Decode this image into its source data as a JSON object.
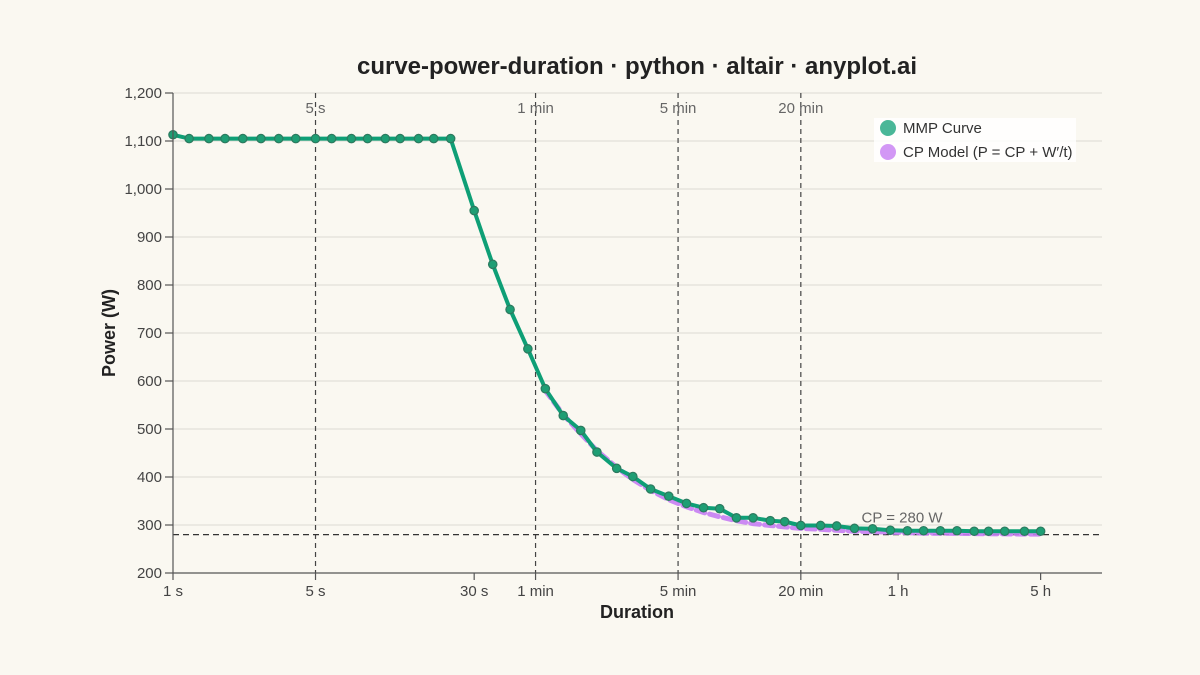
{
  "chart_data": {
    "type": "line",
    "title": "curve-power-duration · python · altair · anyplot.ai",
    "xlabel": "Duration",
    "ylabel": "Power (W)",
    "x_scale": "log",
    "x_unit": "seconds",
    "xlim": [
      1,
      36000
    ],
    "ylim": [
      200,
      1200
    ],
    "yticks": [
      {
        "value": 200,
        "label": "200"
      },
      {
        "value": 300,
        "label": "300"
      },
      {
        "value": 400,
        "label": "400"
      },
      {
        "value": 500,
        "label": "500"
      },
      {
        "value": 600,
        "label": "600"
      },
      {
        "value": 700,
        "label": "700"
      },
      {
        "value": 800,
        "label": "800"
      },
      {
        "value": 900,
        "label": "900"
      },
      {
        "value": 1000,
        "label": "1,000"
      },
      {
        "value": 1100,
        "label": "1,100"
      },
      {
        "value": 1200,
        "label": "1,200"
      }
    ],
    "xticks": [
      {
        "value": 1,
        "label": "1 s"
      },
      {
        "value": 5,
        "label": "5 s"
      },
      {
        "value": 30,
        "label": "30 s"
      },
      {
        "value": 60,
        "label": "1 min"
      },
      {
        "value": 300,
        "label": "5 min"
      },
      {
        "value": 1200,
        "label": "20 min"
      },
      {
        "value": 3600,
        "label": "1 h"
      },
      {
        "value": 18000,
        "label": "5 h"
      }
    ],
    "reference_lines": {
      "vertical": [
        {
          "value": 5,
          "label": "5 s"
        },
        {
          "value": 60,
          "label": "1 min"
        },
        {
          "value": 300,
          "label": "5 min"
        },
        {
          "value": 1200,
          "label": "20 min"
        }
      ],
      "horizontal": [
        {
          "value": 280,
          "label": "CP = 280 W"
        }
      ]
    },
    "grid": "horizontal",
    "legend_position": "top-right",
    "series": [
      {
        "name": "MMP Curve",
        "color": "#0E9F76",
        "marker": "circle",
        "x": [
          1,
          1.2,
          1.5,
          1.8,
          2.2,
          2.7,
          3.3,
          4,
          5,
          6,
          7.5,
          9,
          11,
          13,
          16,
          19,
          23,
          30,
          37,
          45,
          55,
          67,
          82,
          100,
          120,
          150,
          180,
          220,
          270,
          330,
          400,
          480,
          580,
          700,
          850,
          1000,
          1200,
          1500,
          1800,
          2200,
          2700,
          3300,
          4000,
          4800,
          5800,
          7000,
          8500,
          10000,
          12000,
          15000,
          18000
        ],
        "y": [
          1113,
          1105,
          1105,
          1105,
          1105,
          1105,
          1105,
          1105,
          1105,
          1105,
          1105,
          1105,
          1105,
          1105,
          1105,
          1105,
          1105,
          955,
          843,
          749,
          667,
          584,
          528,
          497,
          452,
          418,
          401,
          375,
          360,
          345,
          336,
          334,
          315,
          315,
          309,
          307,
          299,
          299,
          298,
          293,
          292,
          289,
          288,
          288,
          288,
          288,
          287,
          287,
          287,
          287,
          287
        ]
      },
      {
        "name": "CP Model (P = CP + W′/t)",
        "color": "#C77DF3",
        "style": "dashed",
        "cp": 280,
        "x": [
          67,
          82,
          100,
          120,
          150,
          180,
          220,
          270,
          330,
          400,
          480,
          580,
          700,
          850,
          1000,
          1200,
          1500,
          1800,
          2200,
          2700,
          3300,
          4000,
          4800,
          5800,
          7000,
          8500,
          10000,
          12000,
          15000,
          18000
        ],
        "y": [
          580,
          530,
          490,
          455,
          420,
          395,
          372,
          353,
          338,
          326,
          317,
          309,
          303,
          299,
          296,
          293,
          291,
          289,
          287,
          286,
          285,
          284,
          283,
          282.9,
          282.4,
          282,
          281.7,
          281.4,
          281.1,
          281
        ]
      }
    ]
  }
}
